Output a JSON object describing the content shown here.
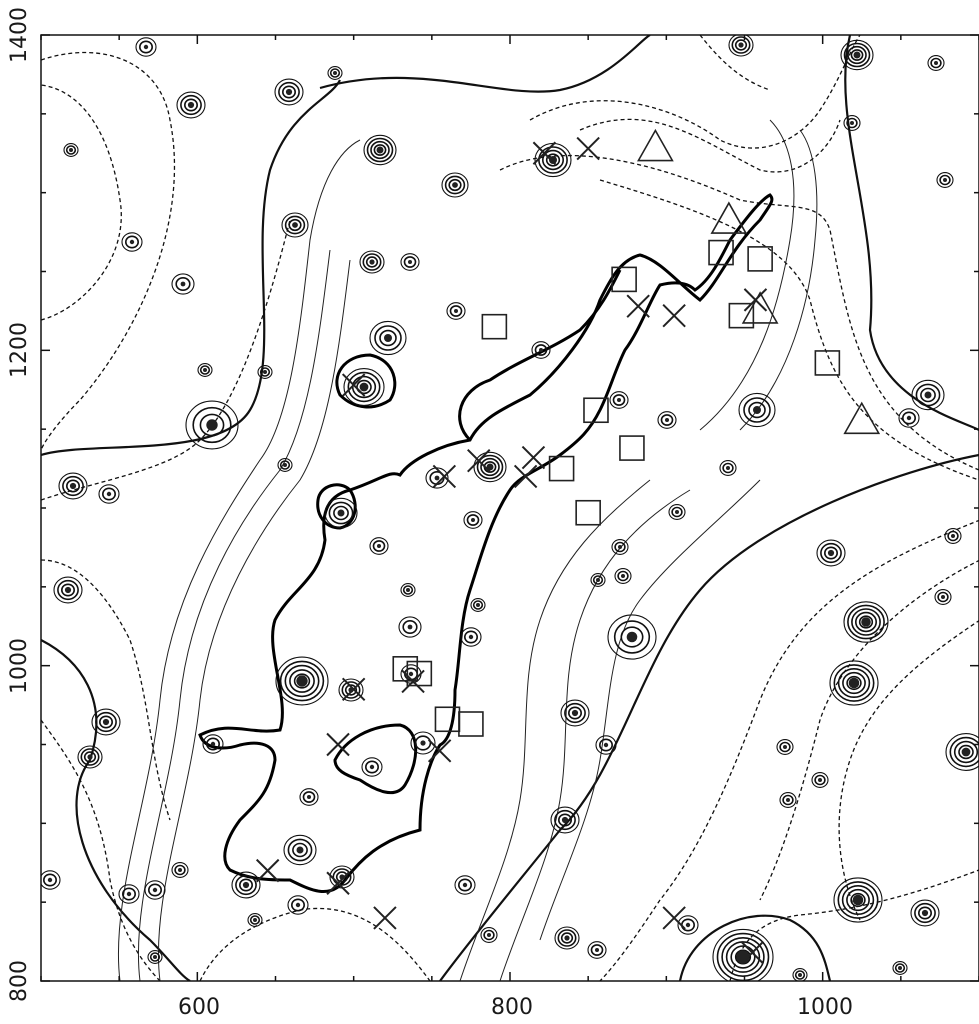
{
  "chart_data": {
    "type": "scatter",
    "title": "",
    "xlabel": "",
    "ylabel": "",
    "xlim": [
      500,
      1100
    ],
    "ylim": [
      800,
      1400
    ],
    "xticks": [
      600,
      800,
      1000
    ],
    "yticks": [
      800,
      1000,
      1200,
      1400
    ],
    "xtick_labels": [
      "600",
      "800",
      "1000"
    ],
    "ytick_labels": [
      "800",
      "1000",
      "1200",
      "1400"
    ],
    "grid": false,
    "legend": "none",
    "series": [
      {
        "marker": "square",
        "points": [
          [
            790,
            1215
          ],
          [
            873,
            1245
          ],
          [
            935,
            1262
          ],
          [
            960,
            1258
          ],
          [
            948,
            1222
          ],
          [
            1003,
            1192
          ],
          [
            855,
            1162
          ],
          [
            878,
            1138
          ],
          [
            833,
            1125
          ],
          [
            850,
            1097
          ],
          [
            733,
            998
          ],
          [
            742,
            995
          ],
          [
            760,
            966
          ],
          [
            775,
            963
          ]
        ]
      },
      {
        "marker": "triangle",
        "points": [
          [
            893,
            1328
          ],
          [
            940,
            1282
          ],
          [
            960,
            1225
          ],
          [
            1025,
            1155
          ]
        ]
      },
      {
        "marker": "cross",
        "points": [
          [
            822,
            1325
          ],
          [
            850,
            1328
          ],
          [
            882,
            1228
          ],
          [
            957,
            1232
          ],
          [
            905,
            1222
          ],
          [
            780,
            1130
          ],
          [
            700,
            1178
          ],
          [
            758,
            1120
          ],
          [
            815,
            1132
          ],
          [
            810,
            1120
          ],
          [
            738,
            990
          ],
          [
            700,
            985
          ],
          [
            690,
            950
          ],
          [
            755,
            946
          ],
          [
            645,
            870
          ],
          [
            690,
            862
          ],
          [
            720,
            840
          ],
          [
            905,
            840
          ],
          [
            955,
            818
          ]
        ]
      }
    ],
    "colors": {
      "ink": "#111111",
      "background": "#ffffff"
    }
  }
}
